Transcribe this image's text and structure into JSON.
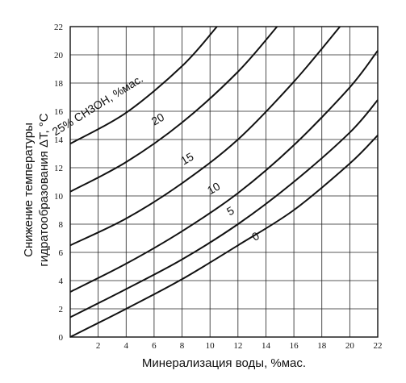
{
  "chart_data": {
    "type": "line",
    "title": "",
    "xlabel": "Минерализация воды, %мас.",
    "ylabel_lines": [
      "Снижение температуры",
      "гидратообразования ΔT, °C"
    ],
    "xlim": [
      0,
      22
    ],
    "ylim": [
      0,
      22
    ],
    "x_ticks": [
      2,
      4,
      6,
      8,
      10,
      12,
      14,
      16,
      18,
      20,
      22
    ],
    "y_ticks": [
      0,
      2,
      4,
      6,
      8,
      10,
      12,
      14,
      16,
      18,
      20,
      22
    ],
    "grid": true,
    "series": [
      {
        "name": "0",
        "label_text": "0",
        "label_at": [
          13.4,
          6.9
        ],
        "label_rotate": -30,
        "points": [
          [
            0,
            0
          ],
          [
            4,
            2.0
          ],
          [
            8,
            4.1
          ],
          [
            12,
            6.5
          ],
          [
            16,
            9.0
          ],
          [
            20,
            12.3
          ],
          [
            22,
            14.3
          ]
        ]
      },
      {
        "name": "5",
        "label_text": "5",
        "label_at": [
          11.6,
          8.7
        ],
        "label_rotate": -30,
        "points": [
          [
            0,
            1.4
          ],
          [
            4,
            3.4
          ],
          [
            8,
            5.5
          ],
          [
            12,
            8.0
          ],
          [
            16,
            11.0
          ],
          [
            20,
            14.5
          ],
          [
            22,
            16.8
          ]
        ]
      },
      {
        "name": "10",
        "label_text": "10",
        "label_at": [
          10.4,
          10.3
        ],
        "label_rotate": -30,
        "points": [
          [
            0,
            3.2
          ],
          [
            4,
            5.2
          ],
          [
            8,
            7.5
          ],
          [
            12,
            10.2
          ],
          [
            16,
            13.6
          ],
          [
            20,
            17.7
          ],
          [
            22,
            20.3
          ]
        ]
      },
      {
        "name": "15",
        "label_text": "15",
        "label_at": [
          8.5,
          12.4
        ],
        "label_rotate": -30,
        "points": [
          [
            0,
            6.5
          ],
          [
            4,
            8.4
          ],
          [
            8,
            10.9
          ],
          [
            12,
            14.0
          ],
          [
            16,
            18.1
          ],
          [
            19.3,
            22.0
          ]
        ]
      },
      {
        "name": "20",
        "label_text": "20",
        "label_at": [
          6.4,
          15.2
        ],
        "label_rotate": -30,
        "points": [
          [
            0,
            10.3
          ],
          [
            4,
            12.4
          ],
          [
            8,
            15.2
          ],
          [
            12,
            18.8
          ],
          [
            14.8,
            22.0
          ]
        ]
      },
      {
        "name": "25% CH3OH, %мас.",
        "label_text": "25% CH3OH, %мас.",
        "label_at": [
          2.1,
          16.2
        ],
        "label_rotate": -32,
        "points": [
          [
            0,
            13.7
          ],
          [
            4,
            15.9
          ],
          [
            8,
            19.2
          ],
          [
            10.5,
            22.0
          ]
        ]
      }
    ]
  }
}
